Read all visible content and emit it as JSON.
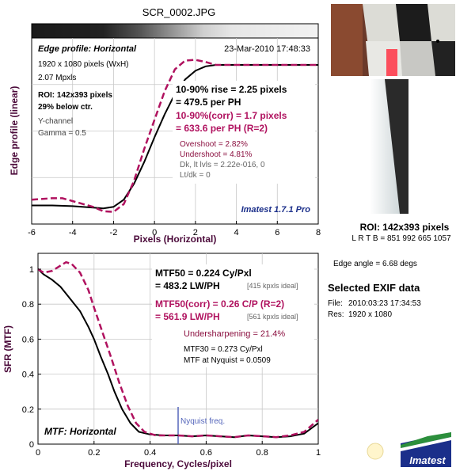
{
  "window_title": "SCR_0002.JPG",
  "colors": {
    "measured": "#000000",
    "corrected": "#b0125f",
    "nyquist": "#5566bb",
    "brand_blue": "#1b2f8a"
  },
  "edge_panel": {
    "title": "Edge profile: Horizontal",
    "date": "23-Mar-2010 17:48:33",
    "info": [
      "1920 x 1080 pixels (WxH)",
      "2.07 Mpxls"
    ],
    "roi": [
      "ROI: 142x393 pixels",
      "29% below ctr."
    ],
    "channel": [
      "Y-channel",
      "Gamma = 0.5"
    ],
    "rise1": "10-90% rise = 2.25 pixels",
    "rise2": "= 479.5 per PH",
    "corr1": "10-90%(corr) = 1.7 pixels",
    "corr2": "= 633.6 per PH   (R=2)",
    "overshoot": "Overshoot = 2.82%",
    "undershoot": "Undershoot = 4.81%",
    "dk": "Dk, lt lvls = 2.22e-016, 0",
    "ltdk": "Lt/dk = 0",
    "version": "Imatest 1.7.1 Pro"
  },
  "mtf_panel": {
    "title": "MTF: Horizontal",
    "mtf50_1": "MTF50 = 0.224 Cy/Pxl",
    "mtf50_2": "= 483.2 LW/PH",
    "mtf50_ideal": "[415 kpxls ideal]",
    "corr1": "MTF50(corr) = 0.26 C/P   (R=2)",
    "corr2": "= 561.9 LW/PH",
    "corr_ideal": "[561 kpxls ideal]",
    "undersharpening": "Undersharpening = 21.4%",
    "mtf30": "MTF30 = 0.273 Cy/Pxl",
    "nyq_mtf": "MTF at Nyquist = 0.0509",
    "nyquist_label": "Nyquist freq."
  },
  "right_panel": {
    "roi_title": "ROI: 142x393 pixels",
    "lrtb": "L R  T B = 851 992  665 1057",
    "edge_angle": "Edge angle = 6.68 degs",
    "exif_title": "Selected EXIF data",
    "exif": [
      {
        "key": "File:",
        "value": "2010:03:23 17:34:53"
      },
      {
        "key": "Res:",
        "value": "1920 x 1080"
      }
    ],
    "logo_text": "Imatest"
  },
  "chart_data": [
    {
      "type": "line",
      "title": "Edge profile: Horizontal",
      "xlabel": "Pixels (Horizontal)",
      "ylabel": "Edge profile (linear)",
      "xlim": [
        -6,
        8
      ],
      "xticks": [
        -6,
        -4,
        -2,
        0,
        2,
        4,
        6,
        8
      ],
      "grid": true,
      "series": [
        {
          "style": "solid",
          "color": "#000000",
          "x": [
            -6,
            -5,
            -4,
            -3,
            -2.5,
            -2,
            -1.5,
            -1,
            -0.5,
            0,
            0.5,
            1,
            1.5,
            2,
            2.5,
            3,
            4,
            5,
            6,
            7,
            8
          ],
          "y": [
            0.03,
            0.03,
            0.025,
            0.015,
            0.01,
            0.02,
            0.07,
            0.18,
            0.33,
            0.5,
            0.66,
            0.8,
            0.9,
            0.96,
            0.99,
            1.0,
            1.0,
            1.0,
            1.0,
            1.0,
            1.0
          ]
        },
        {
          "style": "dashed",
          "color": "#b0125f",
          "x": [
            -6,
            -5,
            -4.5,
            -4,
            -3,
            -2.5,
            -2,
            -1.5,
            -1,
            -0.5,
            0,
            0.5,
            1,
            1.5,
            2,
            2.5,
            3,
            4,
            5,
            6,
            7,
            8
          ],
          "y": [
            0.07,
            0.08,
            0.08,
            0.06,
            0.02,
            -0.01,
            -0.015,
            0.04,
            0.2,
            0.42,
            0.62,
            0.82,
            0.97,
            1.03,
            1.035,
            1.02,
            1.0,
            1.0,
            1.0,
            1.0,
            1.0,
            1.0
          ]
        }
      ]
    },
    {
      "type": "line",
      "title": "MTF: Horizontal",
      "xlabel": "Frequency, Cycles/pixel",
      "ylabel": "SFR (MTF)",
      "xlim": [
        0,
        1
      ],
      "ylim": [
        0,
        1.1
      ],
      "xticks": [
        0,
        0.2,
        0.4,
        0.6,
        0.8,
        1
      ],
      "yticks": [
        0,
        0.2,
        0.4,
        0.6,
        0.8,
        1
      ],
      "grid": true,
      "nyquist": 0.5,
      "series": [
        {
          "style": "solid",
          "color": "#000000",
          "x": [
            0,
            0.02,
            0.05,
            0.08,
            0.1,
            0.12,
            0.15,
            0.18,
            0.2,
            0.224,
            0.25,
            0.273,
            0.3,
            0.33,
            0.36,
            0.4,
            0.45,
            0.5,
            0.55,
            0.6,
            0.65,
            0.7,
            0.75,
            0.8,
            0.85,
            0.9,
            0.95,
            1.0
          ],
          "y": [
            1,
            0.97,
            0.94,
            0.9,
            0.86,
            0.82,
            0.76,
            0.67,
            0.6,
            0.5,
            0.4,
            0.3,
            0.2,
            0.12,
            0.07,
            0.055,
            0.05,
            0.05,
            0.045,
            0.05,
            0.045,
            0.04,
            0.05,
            0.045,
            0.04,
            0.045,
            0.06,
            0.12
          ]
        },
        {
          "style": "dashed",
          "color": "#b0125f",
          "x": [
            0,
            0.02,
            0.05,
            0.08,
            0.1,
            0.12,
            0.15,
            0.18,
            0.2,
            0.23,
            0.26,
            0.29,
            0.32,
            0.35,
            0.38,
            0.42,
            0.45,
            0.5,
            0.55,
            0.6,
            0.65,
            0.7,
            0.75,
            0.8,
            0.85,
            0.9,
            0.95,
            1.0
          ],
          "y": [
            1,
            0.98,
            0.99,
            1.02,
            1.04,
            1.03,
            0.98,
            0.88,
            0.78,
            0.64,
            0.5,
            0.35,
            0.22,
            0.12,
            0.07,
            0.05,
            0.05,
            0.05,
            0.045,
            0.05,
            0.045,
            0.04,
            0.05,
            0.045,
            0.04,
            0.05,
            0.07,
            0.14
          ]
        }
      ]
    }
  ]
}
